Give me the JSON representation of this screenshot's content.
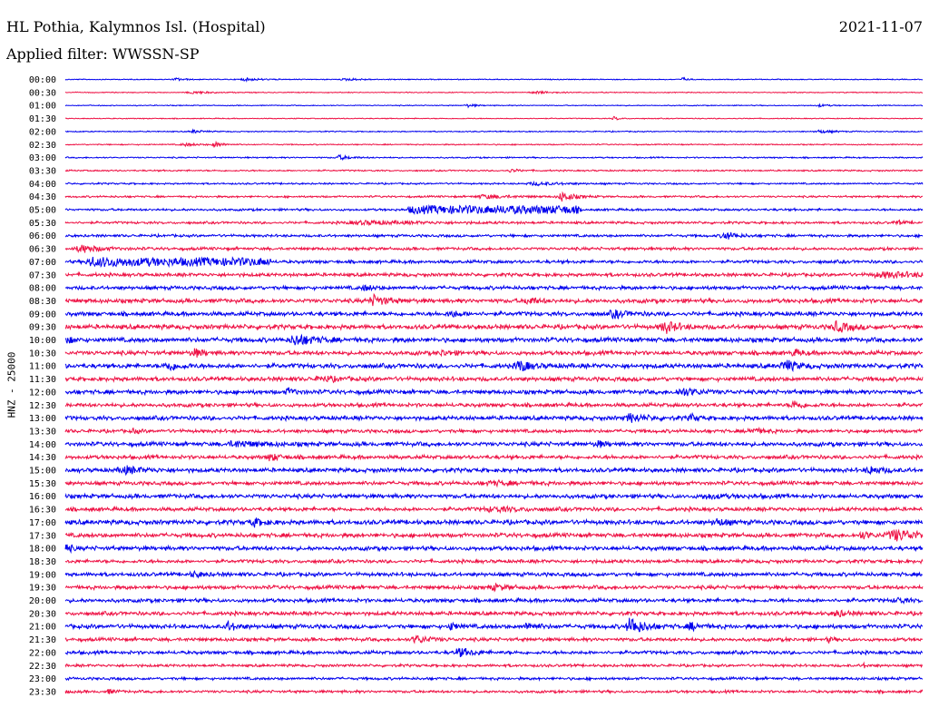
{
  "header": {
    "station": "HL Pothia, Kalymnos Isl. (Hospital)",
    "date": "2021-11-07",
    "filter": "Applied filter: WWSSN-SP"
  },
  "chart_data": {
    "type": "line",
    "subtype": "helicorder",
    "ylabel": "HNZ - 25000",
    "colors": [
      "#0000ee",
      "#ee1144"
    ],
    "rows": [
      {
        "time": "00:00",
        "noise": 0.12,
        "events": [
          {
            "t": 0.13,
            "amp": 0.35,
            "w": 0.01
          },
          {
            "t": 0.21,
            "amp": 0.3,
            "w": 0.02
          },
          {
            "t": 0.33,
            "amp": 0.25,
            "w": 0.02
          },
          {
            "t": 0.72,
            "amp": 0.55,
            "w": 0.004
          }
        ]
      },
      {
        "time": "00:30",
        "noise": 0.12,
        "events": [
          {
            "t": 0.15,
            "amp": 0.3,
            "w": 0.02
          },
          {
            "t": 0.55,
            "amp": 0.3,
            "w": 0.02
          }
        ]
      },
      {
        "time": "01:00",
        "noise": 0.12,
        "events": [
          {
            "t": 0.47,
            "amp": 0.35,
            "w": 0.01
          },
          {
            "t": 0.88,
            "amp": 0.3,
            "w": 0.01
          }
        ]
      },
      {
        "time": "01:30",
        "noise": 0.12,
        "events": [
          {
            "t": 0.64,
            "amp": 0.45,
            "w": 0.006
          }
        ]
      },
      {
        "time": "02:00",
        "noise": 0.14,
        "events": [
          {
            "t": 0.15,
            "amp": 0.4,
            "w": 0.01
          },
          {
            "t": 0.88,
            "amp": 0.4,
            "w": 0.015
          }
        ]
      },
      {
        "time": "02:30",
        "noise": 0.15,
        "events": [
          {
            "t": 0.175,
            "amp": 0.7,
            "w": 0.008
          },
          {
            "t": 0.14,
            "amp": 0.35,
            "w": 0.015
          }
        ]
      },
      {
        "time": "03:00",
        "noise": 0.18,
        "events": [
          {
            "t": 0.32,
            "amp": 0.55,
            "w": 0.012
          }
        ]
      },
      {
        "time": "03:30",
        "noise": 0.2,
        "events": [
          {
            "t": 0.52,
            "amp": 0.4,
            "w": 0.01
          }
        ]
      },
      {
        "time": "04:00",
        "noise": 0.22,
        "events": [
          {
            "t": 0.55,
            "amp": 0.35,
            "w": 0.03
          }
        ]
      },
      {
        "time": "04:30",
        "noise": 0.25,
        "events": [
          {
            "t": 0.58,
            "amp": 1.2,
            "w": 0.012
          },
          {
            "t": 0.49,
            "amp": 0.45,
            "w": 0.03
          }
        ]
      },
      {
        "time": "05:00",
        "noise": 0.3,
        "events": [
          {
            "t": 0.5,
            "amp": 0.85,
            "w": 0.06,
            "flat": true
          }
        ]
      },
      {
        "time": "05:30",
        "noise": 0.32,
        "events": [
          {
            "t": 0.35,
            "amp": 0.4,
            "w": 0.06
          },
          {
            "t": 0.97,
            "amp": 0.45,
            "w": 0.01
          }
        ]
      },
      {
        "time": "06:00",
        "noise": 0.34,
        "events": [
          {
            "t": 0.77,
            "amp": 1.0,
            "w": 0.012
          }
        ]
      },
      {
        "time": "06:30",
        "noise": 0.38,
        "events": [
          {
            "t": 0.02,
            "amp": 0.9,
            "w": 0.02
          }
        ]
      },
      {
        "time": "07:00",
        "noise": 0.42,
        "events": [
          {
            "t": 0.03,
            "amp": 1.3,
            "w": 0.012
          },
          {
            "t": 0.14,
            "amp": 0.75,
            "w": 0.06,
            "flat": true
          }
        ]
      },
      {
        "time": "07:30",
        "noise": 0.45,
        "events": [
          {
            "t": 0.96,
            "amp": 0.6,
            "w": 0.05
          }
        ]
      },
      {
        "time": "08:00",
        "noise": 0.48,
        "events": [
          {
            "t": 0.35,
            "amp": 0.6,
            "w": 0.01
          }
        ]
      },
      {
        "time": "08:30",
        "noise": 0.55,
        "events": [
          {
            "t": 0.36,
            "amp": 1.2,
            "w": 0.015
          },
          {
            "t": 0.54,
            "amp": 0.9,
            "w": 0.01
          }
        ]
      },
      {
        "time": "09:00",
        "noise": 0.55,
        "events": [
          {
            "t": 0.45,
            "amp": 0.8,
            "w": 0.01
          },
          {
            "t": 0.64,
            "amp": 1.0,
            "w": 0.012
          }
        ]
      },
      {
        "time": "09:30",
        "noise": 0.6,
        "events": [
          {
            "t": 0.7,
            "amp": 1.4,
            "w": 0.014
          },
          {
            "t": 0.9,
            "amp": 1.2,
            "w": 0.014
          }
        ]
      },
      {
        "time": "10:00",
        "noise": 0.6,
        "events": [
          {
            "t": 0.27,
            "amp": 1.3,
            "w": 0.02
          },
          {
            "t": 0.0,
            "amp": 0.9,
            "w": 0.008
          }
        ]
      },
      {
        "time": "10:30",
        "noise": 0.55,
        "events": [
          {
            "t": 0.15,
            "amp": 1.0,
            "w": 0.01
          },
          {
            "t": 0.44,
            "amp": 0.6,
            "w": 0.01
          },
          {
            "t": 0.85,
            "amp": 0.7,
            "w": 0.01
          }
        ]
      },
      {
        "time": "11:00",
        "noise": 0.6,
        "events": [
          {
            "t": 0.12,
            "amp": 1.1,
            "w": 0.012
          },
          {
            "t": 0.53,
            "amp": 1.4,
            "w": 0.012
          },
          {
            "t": 0.84,
            "amp": 1.4,
            "w": 0.012
          }
        ]
      },
      {
        "time": "11:30",
        "noise": 0.55,
        "events": [
          {
            "t": 0.3,
            "amp": 0.5,
            "w": 0.02
          }
        ]
      },
      {
        "time": "12:00",
        "noise": 0.55,
        "events": [
          {
            "t": 0.26,
            "amp": 0.8,
            "w": 0.008
          },
          {
            "t": 0.72,
            "amp": 0.9,
            "w": 0.02
          }
        ]
      },
      {
        "time": "12:30",
        "noise": 0.5,
        "events": [
          {
            "t": 0.85,
            "amp": 1.0,
            "w": 0.01
          }
        ]
      },
      {
        "time": "13:00",
        "noise": 0.55,
        "events": [
          {
            "t": 0.66,
            "amp": 1.0,
            "w": 0.015
          },
          {
            "t": 0.73,
            "amp": 0.8,
            "w": 0.008
          }
        ]
      },
      {
        "time": "13:30",
        "noise": 0.45,
        "events": [
          {
            "t": 0.08,
            "amp": 0.7,
            "w": 0.004
          },
          {
            "t": 0.8,
            "amp": 0.6,
            "w": 0.015
          }
        ]
      },
      {
        "time": "14:00",
        "noise": 0.55,
        "events": [
          {
            "t": 0.2,
            "amp": 0.6,
            "w": 0.03
          },
          {
            "t": 0.62,
            "amp": 0.8,
            "w": 0.008
          }
        ]
      },
      {
        "time": "14:30",
        "noise": 0.5,
        "events": [
          {
            "t": 0.24,
            "amp": 0.9,
            "w": 0.01
          }
        ]
      },
      {
        "time": "15:00",
        "noise": 0.55,
        "events": [
          {
            "t": 0.07,
            "amp": 0.8,
            "w": 0.02
          },
          {
            "t": 0.94,
            "amp": 0.8,
            "w": 0.015
          }
        ]
      },
      {
        "time": "15:30",
        "noise": 0.5,
        "events": [
          {
            "t": 0.5,
            "amp": 0.4,
            "w": 0.03
          }
        ]
      },
      {
        "time": "16:00",
        "noise": 0.55,
        "events": [
          {
            "t": 0.75,
            "amp": 0.5,
            "w": 0.02
          }
        ]
      },
      {
        "time": "16:30",
        "noise": 0.5,
        "events": [
          {
            "t": 0.5,
            "amp": 0.5,
            "w": 0.03
          }
        ]
      },
      {
        "time": "17:00",
        "noise": 0.6,
        "events": [
          {
            "t": 0.22,
            "amp": 0.9,
            "w": 0.012
          },
          {
            "t": 0.76,
            "amp": 0.8,
            "w": 0.012
          }
        ]
      },
      {
        "time": "17:30",
        "noise": 0.55,
        "events": [
          {
            "t": 0.97,
            "amp": 1.3,
            "w": 0.03
          },
          {
            "t": 0.93,
            "amp": 0.8,
            "w": 0.01
          }
        ]
      },
      {
        "time": "18:00",
        "noise": 0.55,
        "events": [
          {
            "t": 0.0,
            "amp": 1.2,
            "w": 0.006
          }
        ]
      },
      {
        "time": "18:30",
        "noise": 0.45,
        "events": []
      },
      {
        "time": "19:00",
        "noise": 0.5,
        "events": [
          {
            "t": 0.15,
            "amp": 0.6,
            "w": 0.01
          }
        ]
      },
      {
        "time": "19:30",
        "noise": 0.5,
        "events": [
          {
            "t": 0.5,
            "amp": 0.6,
            "w": 0.015
          }
        ]
      },
      {
        "time": "20:00",
        "noise": 0.5,
        "events": [
          {
            "t": 0.97,
            "amp": 0.8,
            "w": 0.008
          }
        ]
      },
      {
        "time": "20:30",
        "noise": 0.5,
        "events": [
          {
            "t": 0.9,
            "amp": 0.8,
            "w": 0.01
          }
        ]
      },
      {
        "time": "21:00",
        "noise": 0.55,
        "events": [
          {
            "t": 0.19,
            "amp": 1.0,
            "w": 0.01
          },
          {
            "t": 0.45,
            "amp": 0.8,
            "w": 0.008
          },
          {
            "t": 0.54,
            "amp": 0.9,
            "w": 0.01
          },
          {
            "t": 0.66,
            "amp": 2.2,
            "w": 0.014
          },
          {
            "t": 0.73,
            "amp": 0.9,
            "w": 0.01
          }
        ]
      },
      {
        "time": "21:30",
        "noise": 0.45,
        "events": [
          {
            "t": 0.41,
            "amp": 0.9,
            "w": 0.015
          },
          {
            "t": 0.89,
            "amp": 0.6,
            "w": 0.005
          }
        ]
      },
      {
        "time": "22:00",
        "noise": 0.45,
        "events": [
          {
            "t": 0.46,
            "amp": 1.0,
            "w": 0.015
          }
        ]
      },
      {
        "time": "22:30",
        "noise": 0.35,
        "events": [
          {
            "t": 0.93,
            "amp": 0.6,
            "w": 0.005
          }
        ]
      },
      {
        "time": "23:00",
        "noise": 0.35,
        "events": []
      },
      {
        "time": "23:30",
        "noise": 0.35,
        "events": [
          {
            "t": 0.0,
            "amp": 0.5,
            "w": 0.004
          },
          {
            "t": 0.05,
            "amp": 0.5,
            "w": 0.008
          }
        ]
      }
    ]
  }
}
